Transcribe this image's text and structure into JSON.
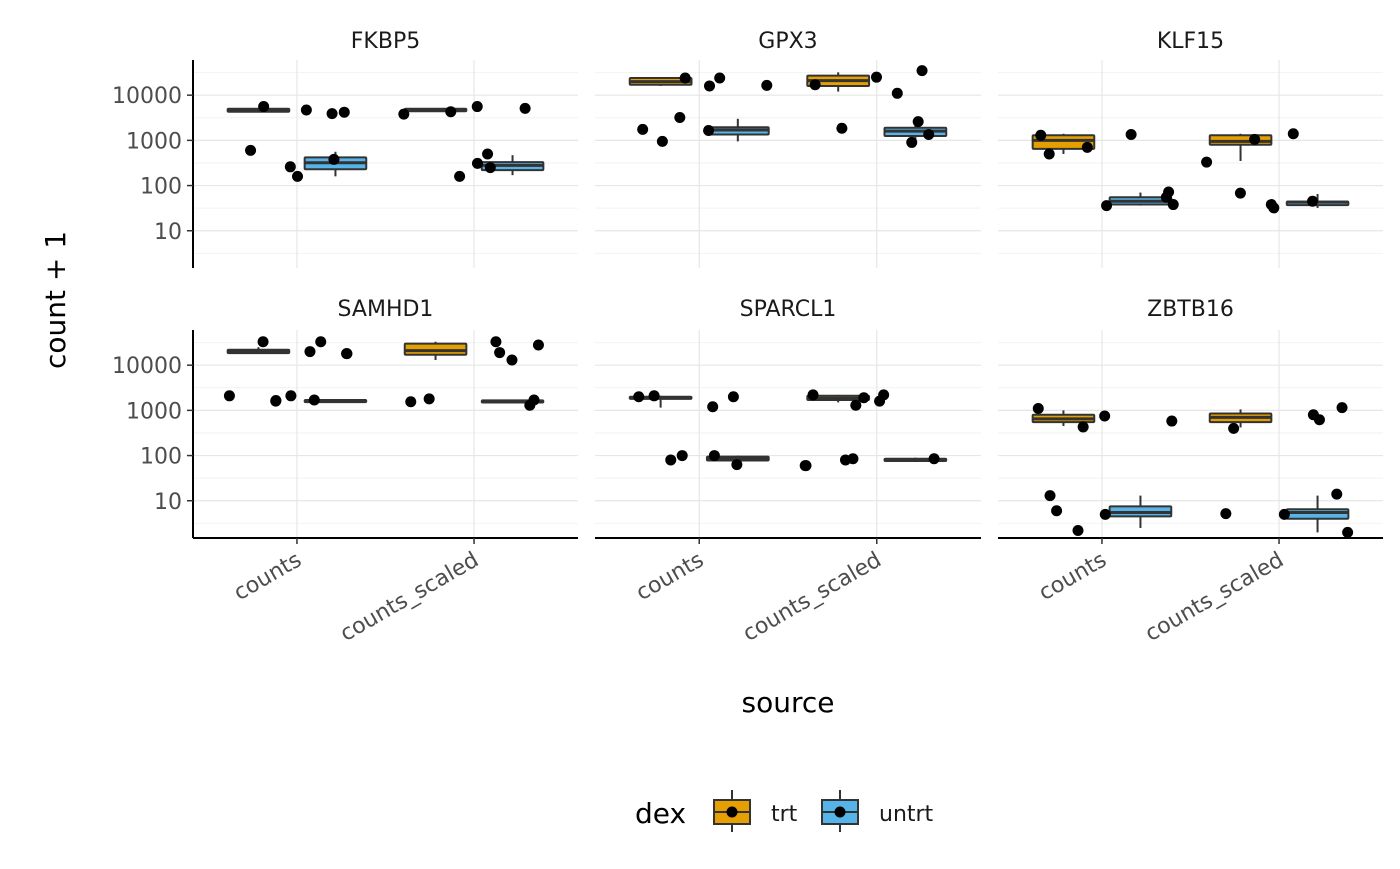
{
  "chart_data": {
    "type": "boxplot",
    "facet_by": "gene",
    "xlabel": "source",
    "ylabel": "count + 1",
    "y_scale": "log10",
    "ylim": [
      1.5,
      60000
    ],
    "y_ticks": [
      10,
      100,
      1000,
      10000
    ],
    "y_tick_labels": [
      "10",
      "100",
      "1000",
      "10000"
    ],
    "categories": [
      "counts",
      "counts_scaled"
    ],
    "legend": {
      "title": "dex",
      "position": "bottom",
      "entries": [
        {
          "label": "trt",
          "color": "#E69F00"
        },
        {
          "label": "untrt",
          "color": "#56B4E9"
        }
      ]
    },
    "grid": true,
    "panels": [
      {
        "title": "FKBP5",
        "boxes": [
          {
            "source": "counts",
            "dex": "trt",
            "min": 4200,
            "q1": 4300,
            "median": 4700,
            "q3": 5000,
            "max": 5200
          },
          {
            "source": "counts",
            "dex": "untrt",
            "min": 160,
            "q1": 230,
            "median": 320,
            "q3": 420,
            "max": 560
          },
          {
            "source": "counts_scaled",
            "dex": "trt",
            "min": 4300,
            "q1": 4400,
            "median": 4700,
            "q3": 5000,
            "max": 5200
          },
          {
            "source": "counts_scaled",
            "dex": "untrt",
            "min": 170,
            "q1": 220,
            "median": 280,
            "q3": 330,
            "max": 470
          }
        ],
        "points": [
          {
            "source": "counts",
            "value": 600
          },
          {
            "source": "counts",
            "value": 3900
          },
          {
            "source": "counts",
            "value": 4700
          },
          {
            "source": "counts",
            "value": 260
          },
          {
            "source": "counts",
            "value": 5600
          },
          {
            "source": "counts",
            "value": 4200
          },
          {
            "source": "counts",
            "value": 380
          },
          {
            "source": "counts",
            "value": 160
          },
          {
            "source": "counts_scaled",
            "value": 310
          },
          {
            "source": "counts_scaled",
            "value": 5600
          },
          {
            "source": "counts_scaled",
            "value": 3800
          },
          {
            "source": "counts_scaled",
            "value": 500
          },
          {
            "source": "counts_scaled",
            "value": 250
          },
          {
            "source": "counts_scaled",
            "value": 160
          },
          {
            "source": "counts_scaled",
            "value": 5100
          },
          {
            "source": "counts_scaled",
            "value": 4300
          }
        ]
      },
      {
        "title": "GPX3",
        "boxes": [
          {
            "source": "counts",
            "dex": "trt",
            "min": 16000,
            "q1": 17000,
            "median": 20000,
            "q3": 24000,
            "max": 25000
          },
          {
            "source": "counts",
            "dex": "untrt",
            "min": 950,
            "q1": 1350,
            "median": 1700,
            "q3": 1950,
            "max": 3000
          },
          {
            "source": "counts_scaled",
            "dex": "trt",
            "min": 12000,
            "q1": 16000,
            "median": 21000,
            "q3": 27000,
            "max": 32000
          },
          {
            "source": "counts_scaled",
            "dex": "untrt",
            "min": 950,
            "q1": 1250,
            "median": 1600,
            "q3": 1900,
            "max": 2500
          }
        ],
        "points": [
          {
            "source": "counts",
            "value": 1650
          },
          {
            "source": "counts",
            "value": 3200
          },
          {
            "source": "counts",
            "value": 24000
          },
          {
            "source": "counts",
            "value": 16000
          },
          {
            "source": "counts",
            "value": 1750
          },
          {
            "source": "counts",
            "value": 24000
          },
          {
            "source": "counts",
            "value": 16500
          },
          {
            "source": "counts",
            "value": 950
          },
          {
            "source": "counts_scaled",
            "value": 1850
          },
          {
            "source": "counts_scaled",
            "value": 2600
          },
          {
            "source": "counts_scaled",
            "value": 1350
          },
          {
            "source": "counts_scaled",
            "value": 11000
          },
          {
            "source": "counts_scaled",
            "value": 17000
          },
          {
            "source": "counts_scaled",
            "value": 25000
          },
          {
            "source": "counts_scaled",
            "value": 35000
          },
          {
            "source": "counts_scaled",
            "value": 900
          }
        ]
      },
      {
        "title": "KLF15",
        "boxes": [
          {
            "source": "counts",
            "dex": "trt",
            "min": 500,
            "q1": 650,
            "median": 1000,
            "q3": 1300,
            "max": 1400
          },
          {
            "source": "counts",
            "dex": "untrt",
            "min": 36,
            "q1": 38,
            "median": 45,
            "q3": 55,
            "max": 70
          },
          {
            "source": "counts_scaled",
            "dex": "trt",
            "min": 350,
            "q1": 800,
            "median": 950,
            "q3": 1300,
            "max": 1400
          },
          {
            "source": "counts_scaled",
            "dex": "untrt",
            "min": 32,
            "q1": 37,
            "median": 43,
            "q3": 44,
            "max": 65
          }
        ],
        "points": [
          {
            "source": "counts",
            "value": 55
          },
          {
            "source": "counts",
            "value": 72
          },
          {
            "source": "counts",
            "value": 500
          },
          {
            "source": "counts",
            "value": 1350
          },
          {
            "source": "counts",
            "value": 1300
          },
          {
            "source": "counts",
            "value": 38
          },
          {
            "source": "counts",
            "value": 36
          },
          {
            "source": "counts",
            "value": 700
          },
          {
            "source": "counts_scaled",
            "value": 1400
          },
          {
            "source": "counts_scaled",
            "value": 38
          },
          {
            "source": "counts_scaled",
            "value": 32
          },
          {
            "source": "counts_scaled",
            "value": 330
          },
          {
            "source": "counts_scaled",
            "value": 45
          },
          {
            "source": "counts_scaled",
            "value": 1050
          },
          {
            "source": "counts_scaled",
            "value": 68
          }
        ]
      },
      {
        "title": "SAMHD1",
        "boxes": [
          {
            "source": "counts",
            "dex": "trt",
            "min": 18000,
            "q1": 18500,
            "median": 20000,
            "q3": 22000,
            "max": 25000
          },
          {
            "source": "counts",
            "dex": "untrt",
            "min": 1600,
            "q1": 1620,
            "median": 1650,
            "q3": 1680,
            "max": 1700
          },
          {
            "source": "counts_scaled",
            "dex": "trt",
            "min": 13000,
            "q1": 17000,
            "median": 21000,
            "q3": 30000,
            "max": 33000
          },
          {
            "source": "counts_scaled",
            "dex": "untrt",
            "min": 1550,
            "q1": 1580,
            "median": 1620,
            "q3": 1650,
            "max": 1700
          }
        ],
        "points": [
          {
            "source": "counts",
            "value": 1700
          },
          {
            "source": "counts",
            "value": 33000
          },
          {
            "source": "counts",
            "value": 18000
          },
          {
            "source": "counts",
            "value": 1650
          },
          {
            "source": "counts",
            "value": 18000
          },
          {
            "source": "counts",
            "value": 2100
          },
          {
            "source": "counts",
            "value": 33000
          },
          {
            "source": "counts",
            "value": 20000
          },
          {
            "source": "counts",
            "value": 2100
          },
          {
            "source": "counts",
            "value": 1600
          },
          {
            "source": "counts_scaled",
            "value": 1300
          },
          {
            "source": "counts_scaled",
            "value": 1800
          },
          {
            "source": "counts_scaled",
            "value": 1700
          },
          {
            "source": "counts_scaled",
            "value": 33000
          },
          {
            "source": "counts_scaled",
            "value": 13000
          },
          {
            "source": "counts_scaled",
            "value": 1550
          },
          {
            "source": "counts_scaled",
            "value": 19000
          },
          {
            "source": "counts_scaled",
            "value": 28000
          }
        ]
      },
      {
        "title": "SPARCL1",
        "boxes": [
          {
            "source": "counts",
            "dex": "trt",
            "min": 1150,
            "q1": 1800,
            "median": 1900,
            "q3": 2000,
            "max": 2100
          },
          {
            "source": "counts",
            "dex": "untrt",
            "min": 70,
            "q1": 78,
            "median": 85,
            "q3": 95,
            "max": 100
          },
          {
            "source": "counts_scaled",
            "dex": "trt",
            "min": 1500,
            "q1": 1700,
            "median": 1850,
            "q3": 2100,
            "max": 2200
          },
          {
            "source": "counts_scaled",
            "dex": "untrt",
            "min": 72,
            "q1": 76,
            "median": 80,
            "q3": 85,
            "max": 90
          }
        ],
        "points": [
          {
            "source": "counts",
            "value": 2000
          },
          {
            "source": "counts",
            "value": 100
          },
          {
            "source": "counts",
            "value": 63
          },
          {
            "source": "counts",
            "value": 1200
          },
          {
            "source": "counts",
            "value": 80
          },
          {
            "source": "counts",
            "value": 2100
          },
          {
            "source": "counts",
            "value": 2000
          },
          {
            "source": "counts",
            "value": 100
          },
          {
            "source": "counts_scaled",
            "value": 85
          },
          {
            "source": "counts_scaled",
            "value": 1900
          },
          {
            "source": "counts_scaled",
            "value": 80
          },
          {
            "source": "counts_scaled",
            "value": 60
          },
          {
            "source": "counts_scaled",
            "value": 60
          },
          {
            "source": "counts_scaled",
            "value": 2200
          },
          {
            "source": "counts_scaled",
            "value": 1600
          },
          {
            "source": "counts_scaled",
            "value": 1300
          },
          {
            "source": "counts_scaled",
            "value": 85
          },
          {
            "source": "counts_scaled",
            "value": 2200
          }
        ]
      },
      {
        "title": "ZBTB16",
        "boxes": [
          {
            "source": "counts",
            "dex": "trt",
            "min": 450,
            "q1": 550,
            "median": 650,
            "q3": 800,
            "max": 1000
          },
          {
            "source": "counts",
            "dex": "untrt",
            "min": 2.5,
            "q1": 4.5,
            "median": 5.5,
            "q3": 7.5,
            "max": 13
          },
          {
            "source": "counts_scaled",
            "dex": "trt",
            "min": 420,
            "q1": 550,
            "median": 700,
            "q3": 850,
            "max": 1050
          },
          {
            "source": "counts_scaled",
            "dex": "untrt",
            "min": 2,
            "q1": 4,
            "median": 5.5,
            "q3": 6.5,
            "max": 13
          }
        ],
        "points": [
          {
            "source": "counts",
            "value": 580
          },
          {
            "source": "counts",
            "value": 2.2
          },
          {
            "source": "counts",
            "value": 6
          },
          {
            "source": "counts",
            "value": 5
          },
          {
            "source": "counts",
            "value": 1100
          },
          {
            "source": "counts",
            "value": 750
          },
          {
            "source": "counts",
            "value": 430
          },
          {
            "source": "counts",
            "value": 13
          },
          {
            "source": "counts_scaled",
            "value": 620
          },
          {
            "source": "counts_scaled",
            "value": 400
          },
          {
            "source": "counts_scaled",
            "value": 5
          },
          {
            "source": "counts_scaled",
            "value": 14
          },
          {
            "source": "counts_scaled",
            "value": 1150
          },
          {
            "source": "counts_scaled",
            "value": 5.2
          },
          {
            "source": "counts_scaled",
            "value": 2
          },
          {
            "source": "counts_scaled",
            "value": 800
          }
        ]
      }
    ]
  }
}
